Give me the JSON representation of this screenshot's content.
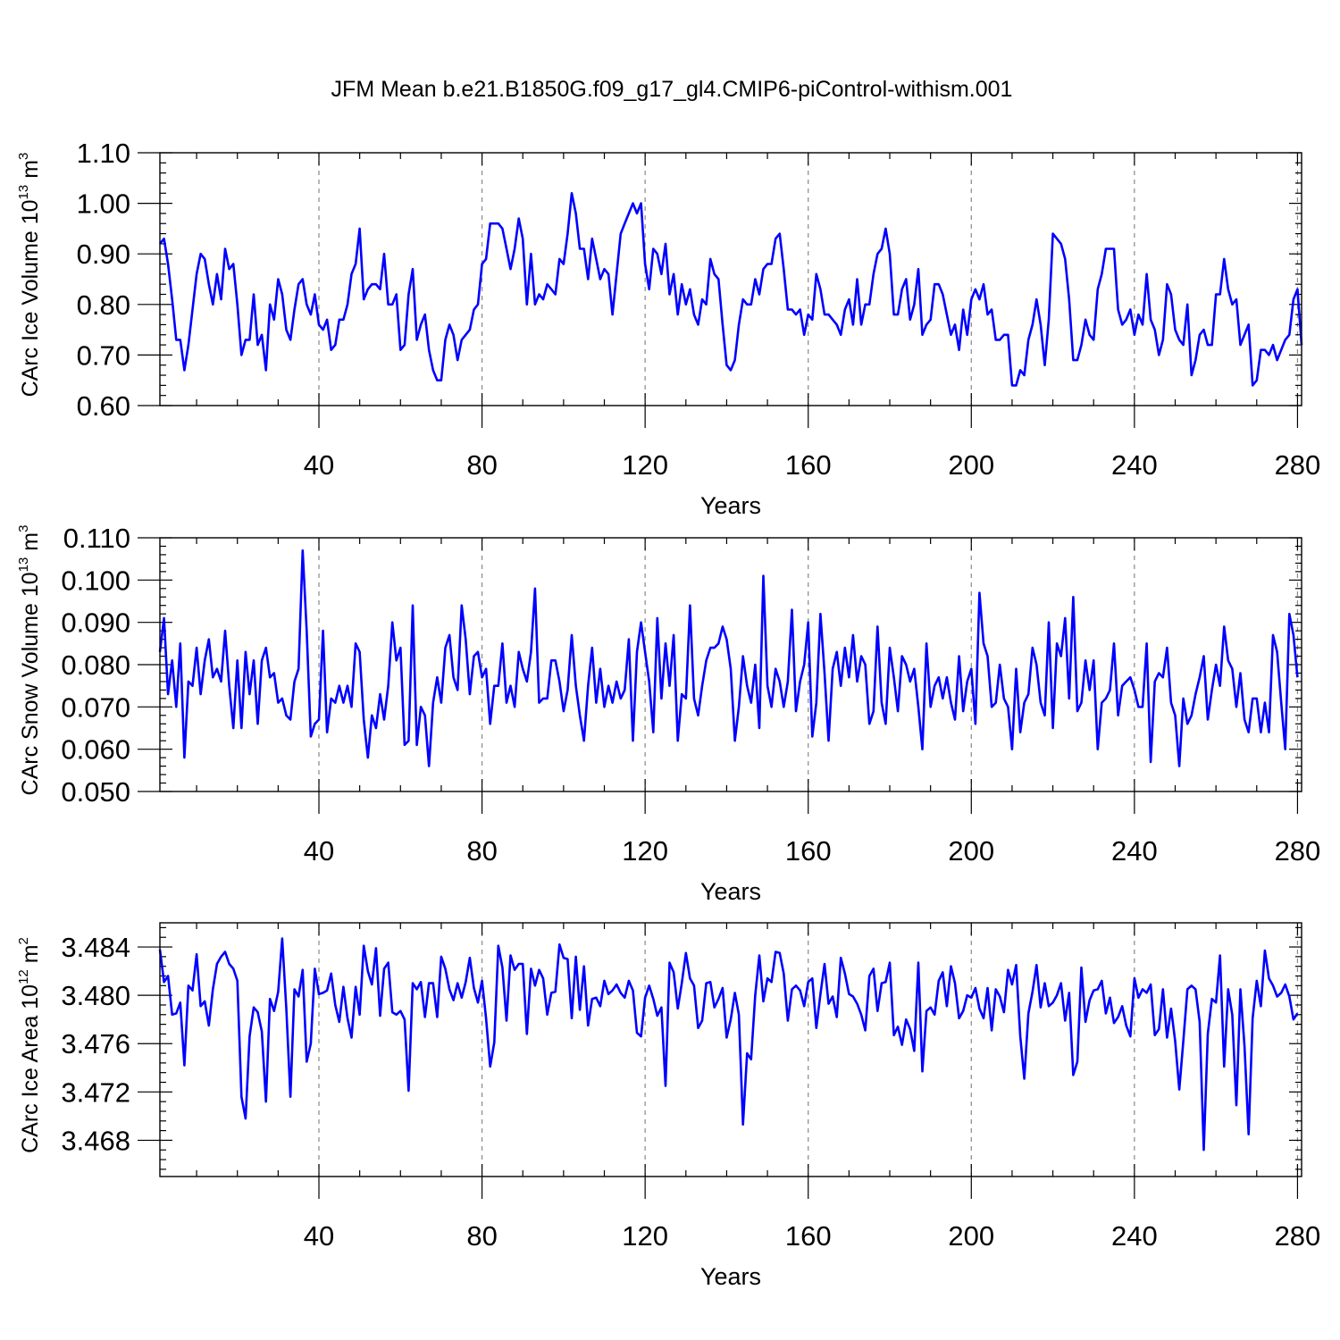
{
  "title": "JFM Mean b.e21.B1850G.f09_g17_gl4.CMIP6-piControl-withism.001",
  "line_color": "#0000ff",
  "chart_data": [
    {
      "type": "line",
      "xlabel": "Years",
      "ylabel_text": "CArc Ice Volume 10",
      "ylabel_exp": "13",
      "ylabel_unit": " m",
      "ylabel_unit_exp": "3",
      "xlim": [
        1,
        281
      ],
      "ylim": [
        0.6,
        1.1
      ],
      "xticks": [
        40,
        80,
        120,
        160,
        200,
        240,
        280
      ],
      "yticks": [
        0.6,
        0.7,
        0.8,
        0.9,
        1.0,
        1.1
      ],
      "ytick_labels": [
        "0.60",
        "0.70",
        "0.80",
        "0.90",
        "1.00",
        "1.10"
      ],
      "x_start": 1,
      "values": [
        0.92,
        0.93,
        0.88,
        0.81,
        0.73,
        0.73,
        0.67,
        0.72,
        0.79,
        0.86,
        0.9,
        0.89,
        0.84,
        0.8,
        0.86,
        0.81,
        0.91,
        0.87,
        0.88,
        0.8,
        0.7,
        0.73,
        0.73,
        0.82,
        0.72,
        0.74,
        0.67,
        0.8,
        0.77,
        0.85,
        0.82,
        0.75,
        0.73,
        0.79,
        0.84,
        0.85,
        0.8,
        0.78,
        0.82,
        0.76,
        0.75,
        0.77,
        0.71,
        0.72,
        0.77,
        0.77,
        0.8,
        0.86,
        0.88,
        0.95,
        0.81,
        0.83,
        0.84,
        0.84,
        0.83,
        0.9,
        0.8,
        0.8,
        0.82,
        0.71,
        0.72,
        0.82,
        0.87,
        0.73,
        0.76,
        0.78,
        0.71,
        0.67,
        0.65,
        0.65,
        0.73,
        0.76,
        0.74,
        0.69,
        0.73,
        0.74,
        0.75,
        0.79,
        0.8,
        0.88,
        0.89,
        0.96,
        0.96,
        0.96,
        0.95,
        0.91,
        0.87,
        0.91,
        0.97,
        0.93,
        0.8,
        0.9,
        0.8,
        0.82,
        0.81,
        0.84,
        0.83,
        0.82,
        0.89,
        0.88,
        0.94,
        1.02,
        0.98,
        0.91,
        0.91,
        0.85,
        0.93,
        0.89,
        0.85,
        0.87,
        0.86,
        0.78,
        0.86,
        0.94,
        0.96,
        0.98,
        1.0,
        0.98,
        1.0,
        0.88,
        0.83,
        0.91,
        0.9,
        0.86,
        0.92,
        0.82,
        0.86,
        0.78,
        0.84,
        0.8,
        0.83,
        0.78,
        0.76,
        0.81,
        0.8,
        0.89,
        0.86,
        0.85,
        0.76,
        0.68,
        0.67,
        0.69,
        0.76,
        0.81,
        0.8,
        0.8,
        0.85,
        0.82,
        0.87,
        0.88,
        0.88,
        0.93,
        0.94,
        0.87,
        0.79,
        0.79,
        0.78,
        0.79,
        0.74,
        0.78,
        0.77,
        0.86,
        0.83,
        0.78,
        0.78,
        0.77,
        0.76,
        0.74,
        0.79,
        0.81,
        0.76,
        0.85,
        0.76,
        0.8,
        0.8,
        0.86,
        0.9,
        0.91,
        0.95,
        0.9,
        0.78,
        0.78,
        0.83,
        0.85,
        0.77,
        0.8,
        0.87,
        0.74,
        0.76,
        0.77,
        0.84,
        0.84,
        0.82,
        0.78,
        0.74,
        0.76,
        0.71,
        0.79,
        0.74,
        0.81,
        0.83,
        0.81,
        0.84,
        0.78,
        0.79,
        0.73,
        0.73,
        0.74,
        0.74,
        0.64,
        0.64,
        0.67,
        0.66,
        0.73,
        0.76,
        0.81,
        0.76,
        0.68,
        0.77,
        0.94,
        0.93,
        0.92,
        0.89,
        0.81,
        0.69,
        0.69,
        0.72,
        0.77,
        0.74,
        0.73,
        0.83,
        0.86,
        0.91,
        0.91,
        0.91,
        0.79,
        0.76,
        0.77,
        0.79,
        0.74,
        0.78,
        0.76,
        0.86,
        0.77,
        0.75,
        0.7,
        0.73,
        0.84,
        0.82,
        0.75,
        0.73,
        0.72,
        0.8,
        0.66,
        0.69,
        0.74,
        0.75,
        0.72,
        0.72,
        0.82,
        0.82,
        0.89,
        0.83,
        0.8,
        0.81,
        0.72,
        0.74,
        0.76,
        0.64,
        0.65,
        0.71,
        0.71,
        0.7,
        0.72,
        0.69,
        0.71,
        0.73,
        0.74,
        0.81,
        0.83,
        0.72
      ]
    },
    {
      "type": "line",
      "xlabel": "Years",
      "ylabel_text": "CArc Snow Volume 10",
      "ylabel_exp": "13",
      "ylabel_unit": " m",
      "ylabel_unit_exp": "3",
      "xlim": [
        1,
        281
      ],
      "ylim": [
        0.05,
        0.11
      ],
      "xticks": [
        40,
        80,
        120,
        160,
        200,
        240,
        280
      ],
      "yticks": [
        0.05,
        0.06,
        0.07,
        0.08,
        0.09,
        0.1,
        0.11
      ],
      "ytick_labels": [
        "0.050",
        "0.060",
        "0.070",
        "0.080",
        "0.090",
        "0.100",
        "0.110"
      ],
      "x_start": 1,
      "values": [
        0.083,
        0.091,
        0.073,
        0.081,
        0.07,
        0.085,
        0.058,
        0.076,
        0.075,
        0.084,
        0.073,
        0.081,
        0.086,
        0.077,
        0.079,
        0.076,
        0.088,
        0.075,
        0.065,
        0.081,
        0.065,
        0.083,
        0.073,
        0.081,
        0.066,
        0.081,
        0.084,
        0.077,
        0.078,
        0.071,
        0.072,
        0.068,
        0.067,
        0.076,
        0.079,
        0.107,
        0.088,
        0.063,
        0.066,
        0.067,
        0.088,
        0.064,
        0.072,
        0.071,
        0.075,
        0.071,
        0.075,
        0.07,
        0.085,
        0.083,
        0.067,
        0.058,
        0.068,
        0.065,
        0.073,
        0.067,
        0.075,
        0.09,
        0.081,
        0.084,
        0.061,
        0.062,
        0.094,
        0.061,
        0.07,
        0.068,
        0.056,
        0.071,
        0.077,
        0.071,
        0.084,
        0.087,
        0.077,
        0.074,
        0.094,
        0.086,
        0.073,
        0.082,
        0.083,
        0.077,
        0.079,
        0.066,
        0.075,
        0.075,
        0.085,
        0.071,
        0.075,
        0.07,
        0.083,
        0.079,
        0.076,
        0.083,
        0.098,
        0.071,
        0.072,
        0.072,
        0.081,
        0.081,
        0.076,
        0.069,
        0.074,
        0.087,
        0.075,
        0.068,
        0.062,
        0.075,
        0.084,
        0.071,
        0.079,
        0.07,
        0.075,
        0.071,
        0.076,
        0.072,
        0.074,
        0.086,
        0.062,
        0.083,
        0.09,
        0.083,
        0.076,
        0.064,
        0.091,
        0.072,
        0.085,
        0.075,
        0.087,
        0.062,
        0.073,
        0.072,
        0.094,
        0.072,
        0.068,
        0.075,
        0.081,
        0.084,
        0.084,
        0.085,
        0.089,
        0.086,
        0.079,
        0.062,
        0.07,
        0.082,
        0.075,
        0.071,
        0.08,
        0.065,
        0.101,
        0.075,
        0.07,
        0.079,
        0.076,
        0.07,
        0.076,
        0.093,
        0.069,
        0.076,
        0.08,
        0.09,
        0.063,
        0.071,
        0.092,
        0.078,
        0.062,
        0.079,
        0.083,
        0.075,
        0.084,
        0.077,
        0.087,
        0.076,
        0.082,
        0.08,
        0.066,
        0.069,
        0.089,
        0.071,
        0.066,
        0.084,
        0.077,
        0.069,
        0.082,
        0.08,
        0.076,
        0.079,
        0.07,
        0.06,
        0.085,
        0.07,
        0.075,
        0.077,
        0.072,
        0.077,
        0.071,
        0.067,
        0.082,
        0.069,
        0.076,
        0.079,
        0.066,
        0.097,
        0.085,
        0.082,
        0.07,
        0.071,
        0.08,
        0.072,
        0.07,
        0.06,
        0.079,
        0.064,
        0.071,
        0.073,
        0.084,
        0.08,
        0.071,
        0.068,
        0.09,
        0.065,
        0.085,
        0.082,
        0.091,
        0.072,
        0.096,
        0.069,
        0.071,
        0.081,
        0.074,
        0.081,
        0.06,
        0.071,
        0.072,
        0.074,
        0.085,
        0.068,
        0.075,
        0.076,
        0.077,
        0.074,
        0.07,
        0.07,
        0.085,
        0.057,
        0.076,
        0.078,
        0.077,
        0.084,
        0.071,
        0.068,
        0.056,
        0.072,
        0.066,
        0.068,
        0.073,
        0.077,
        0.082,
        0.067,
        0.074,
        0.08,
        0.075,
        0.089,
        0.081,
        0.079,
        0.07,
        0.078,
        0.067,
        0.064,
        0.072,
        0.072,
        0.064,
        0.071,
        0.064,
        0.087,
        0.083,
        0.071,
        0.06,
        0.092,
        0.087,
        0.077
      ]
    },
    {
      "type": "line",
      "xlabel": "Years",
      "ylabel_text": "CArc Ice Area 10",
      "ylabel_exp": "12",
      "ylabel_unit": " m",
      "ylabel_unit_exp": "2",
      "xlim": [
        1,
        281
      ],
      "ylim": [
        3.465,
        3.486
      ],
      "xticks": [
        40,
        80,
        120,
        160,
        200,
        240,
        280
      ],
      "yticks": [
        3.468,
        3.472,
        3.476,
        3.48,
        3.484
      ],
      "ytick_labels": [
        "3.468",
        "3.472",
        "3.476",
        "3.480",
        "3.484"
      ],
      "x_start": 1,
      "values": [
        3.4838,
        3.4811,
        3.4816,
        3.4784,
        3.4785,
        3.4794,
        3.4742,
        3.4808,
        3.4804,
        3.4834,
        3.4791,
        3.4795,
        3.4775,
        3.4805,
        3.4826,
        3.4832,
        3.4836,
        3.4826,
        3.4822,
        3.4812,
        3.4716,
        3.4698,
        3.4766,
        3.479,
        3.4786,
        3.477,
        3.4712,
        3.4797,
        3.4787,
        3.4803,
        3.4847,
        3.4789,
        3.4716,
        3.4805,
        3.4799,
        3.4821,
        3.4745,
        3.476,
        3.4822,
        3.4801,
        3.4802,
        3.4804,
        3.4818,
        3.4792,
        3.4778,
        3.4807,
        3.4781,
        3.4765,
        3.4807,
        3.4784,
        3.4841,
        3.482,
        3.4809,
        3.4839,
        3.4783,
        3.4822,
        3.4827,
        3.4786,
        3.4784,
        3.4787,
        3.478,
        3.4721,
        3.481,
        3.4805,
        3.4811,
        3.4782,
        3.481,
        3.481,
        3.4782,
        3.4832,
        3.4822,
        3.4805,
        3.4796,
        3.481,
        3.4798,
        3.4811,
        3.4831,
        3.4806,
        3.4794,
        3.4812,
        3.4781,
        3.4741,
        3.4761,
        3.4841,
        3.4823,
        3.4779,
        3.4833,
        3.4821,
        3.4826,
        3.4826,
        3.4768,
        3.4822,
        3.4808,
        3.4821,
        3.4814,
        3.4784,
        3.4802,
        3.4803,
        3.4842,
        3.4831,
        3.483,
        3.4781,
        3.4832,
        3.4788,
        3.4824,
        3.4775,
        3.4797,
        3.4798,
        3.4791,
        3.4812,
        3.4801,
        3.4804,
        3.4809,
        3.4802,
        3.4798,
        3.4812,
        3.4804,
        3.4769,
        3.4766,
        3.4798,
        3.4808,
        3.4797,
        3.4783,
        3.479,
        3.4725,
        3.4827,
        3.4819,
        3.4789,
        3.481,
        3.4835,
        3.4814,
        3.4808,
        3.4773,
        3.4779,
        3.481,
        3.4811,
        3.479,
        3.4797,
        3.4806,
        3.4765,
        3.478,
        3.4802,
        3.4784,
        3.4693,
        3.4752,
        3.4747,
        3.48,
        3.4833,
        3.4795,
        3.4814,
        3.4811,
        3.4836,
        3.4835,
        3.4818,
        3.4779,
        3.4805,
        3.4808,
        3.4804,
        3.4791,
        3.4811,
        3.4814,
        3.4773,
        3.4801,
        3.4826,
        3.4793,
        3.4799,
        3.4782,
        3.4831,
        3.4818,
        3.4801,
        3.4799,
        3.4793,
        3.4784,
        3.4771,
        3.4816,
        3.4822,
        3.4787,
        3.481,
        3.4811,
        3.4827,
        3.4767,
        3.4774,
        3.4759,
        3.478,
        3.4772,
        3.4754,
        3.4827,
        3.4737,
        3.4787,
        3.479,
        3.4784,
        3.4812,
        3.4819,
        3.4791,
        3.4824,
        3.481,
        3.4781,
        3.4787,
        3.48,
        3.4798,
        3.4806,
        3.4789,
        3.4781,
        3.4806,
        3.4771,
        3.4805,
        3.4799,
        3.4786,
        3.4821,
        3.4809,
        3.4825,
        3.4766,
        3.4731,
        3.4785,
        3.4803,
        3.4825,
        3.479,
        3.481,
        3.4791,
        3.4794,
        3.48,
        3.481,
        3.4779,
        3.4802,
        3.4734,
        3.4745,
        3.4823,
        3.4778,
        3.4796,
        3.4804,
        3.4805,
        3.4812,
        3.4785,
        3.4798,
        3.4777,
        3.4782,
        3.4791,
        3.4775,
        3.4766,
        3.4814,
        3.4798,
        3.4805,
        3.4802,
        3.4809,
        3.4767,
        3.4772,
        3.4805,
        3.4765,
        3.4789,
        3.4762,
        3.4722,
        3.4762,
        3.4805,
        3.4808,
        3.4805,
        3.4778,
        3.4672,
        3.4768,
        3.4797,
        3.4794,
        3.4833,
        3.4741,
        3.4805,
        3.4784,
        3.4709,
        3.4805,
        3.4758,
        3.4685,
        3.4781,
        3.4812,
        3.4791,
        3.4837,
        3.4814,
        3.4808,
        3.4799,
        3.4802,
        3.4809,
        3.4799,
        3.478,
        3.4785
      ]
    }
  ]
}
